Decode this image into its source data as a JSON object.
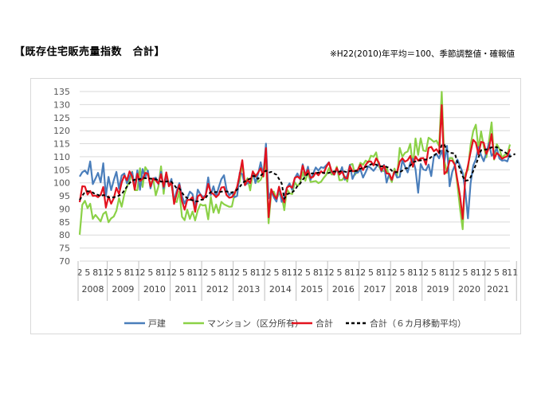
{
  "header": {
    "title": "【既存住宅販売量指数　合計】",
    "note": "※H22(2010)年平均＝100、季節調整値・確報値"
  },
  "chart_data": {
    "type": "line",
    "title": "【既存住宅販売量指数　合計】",
    "ylim": [
      70,
      135
    ],
    "yticks": [
      70,
      75,
      80,
      85,
      90,
      95,
      100,
      105,
      110,
      115,
      120,
      125,
      130,
      135
    ],
    "grid": true,
    "legend_position": "bottom",
    "start_month": "2008-02",
    "x_ticks": [
      {
        "month": "2008-02",
        "label": "2"
      },
      {
        "month": "2008-05",
        "label": "5"
      },
      {
        "month": "2008-08",
        "label": "8"
      },
      {
        "month": "2008-11",
        "label": "11"
      },
      {
        "month": "2009-02",
        "label": "2"
      },
      {
        "month": "2009-05",
        "label": "5"
      },
      {
        "month": "2009-08",
        "label": "8"
      },
      {
        "month": "2009-11",
        "label": "11"
      },
      {
        "month": "2010-02",
        "label": "2"
      },
      {
        "month": "2010-05",
        "label": "5"
      },
      {
        "month": "2010-08",
        "label": "8"
      },
      {
        "month": "2010-11",
        "label": "11"
      },
      {
        "month": "2011-02",
        "label": "2"
      },
      {
        "month": "2011-05",
        "label": "5"
      },
      {
        "month": "2011-08",
        "label": "8"
      },
      {
        "month": "2011-11",
        "label": "11"
      },
      {
        "month": "2012-02",
        "label": "2"
      },
      {
        "month": "2012-05",
        "label": "5"
      },
      {
        "month": "2012-08",
        "label": "8"
      },
      {
        "month": "2012-11",
        "label": "11"
      },
      {
        "month": "2013-02",
        "label": "2"
      },
      {
        "month": "2013-05",
        "label": "5"
      },
      {
        "month": "2013-08",
        "label": "8"
      },
      {
        "month": "2013-11",
        "label": "11"
      },
      {
        "month": "2014-02",
        "label": "2"
      },
      {
        "month": "2014-05",
        "label": "5"
      },
      {
        "month": "2014-08",
        "label": "8"
      },
      {
        "month": "2014-11",
        "label": "11"
      },
      {
        "month": "2015-02",
        "label": "2"
      },
      {
        "month": "2015-05",
        "label": "5"
      },
      {
        "month": "2015-08",
        "label": "8"
      },
      {
        "month": "2015-11",
        "label": "11"
      },
      {
        "month": "2016-02",
        "label": "2"
      },
      {
        "month": "2016-05",
        "label": "5"
      },
      {
        "month": "2016-08",
        "label": "8"
      },
      {
        "month": "2016-11",
        "label": "11"
      },
      {
        "month": "2017-02",
        "label": "2"
      },
      {
        "month": "2017-05",
        "label": "5"
      },
      {
        "month": "2017-08",
        "label": "8"
      },
      {
        "month": "2017-11",
        "label": "11"
      },
      {
        "month": "2018-02",
        "label": "2"
      },
      {
        "month": "2018-05",
        "label": "5"
      },
      {
        "month": "2018-08",
        "label": "8"
      },
      {
        "month": "2018-11",
        "label": "11"
      },
      {
        "month": "2019-02",
        "label": "2"
      },
      {
        "month": "2019-05",
        "label": "5"
      },
      {
        "month": "2019-08",
        "label": "8"
      },
      {
        "month": "2019-11",
        "label": "11"
      },
      {
        "month": "2020-02",
        "label": "2"
      },
      {
        "month": "2020-05",
        "label": "5"
      },
      {
        "month": "2020-08",
        "label": "8"
      },
      {
        "month": "2020-11",
        "label": "11"
      },
      {
        "month": "2021-02",
        "label": "2"
      },
      {
        "month": "2021-05",
        "label": "5"
      },
      {
        "month": "2021-08",
        "label": "8"
      },
      {
        "month": "2021-11",
        "label": "11"
      }
    ],
    "years": [
      "2008",
      "2009",
      "2010",
      "2011",
      "2012",
      "2013",
      "2014",
      "2015",
      "2016",
      "2017",
      "2018",
      "2019",
      "2020",
      "2021"
    ],
    "series": [
      {
        "name": "戸建",
        "color": "#4a7ebb",
        "style": "solid",
        "values": [
          102.4,
          104.1,
          104.7,
          103.4,
          108.2,
          99.5,
          101.6,
          103.8,
          100.2,
          107.5,
          94.9,
          102.3,
          97.2,
          101.0,
          104.2,
          97.7,
          102.8,
          103.6,
          99.8,
          102.3,
          104.1,
          98.4,
          104.8,
          97.3,
          105.3,
          101.9,
          104.7,
          97.9,
          101.6,
          102.0,
          99.5,
          104.2,
          97.9,
          102.2,
          99.1,
          101.5,
          92.9,
          97.0,
          99.9,
          94.9,
          92.1,
          94.2,
          96.6,
          95.7,
          90.5,
          97.4,
          95.6,
          94.6,
          95.2,
          102.1,
          95.4,
          98.7,
          94.9,
          98.3,
          101.4,
          102.9,
          97.3,
          95.2,
          96.3,
          94.5,
          95.0,
          103.9,
          103.3,
          99.1,
          99.9,
          100.2,
          104.1,
          99.9,
          103.4,
          107.9,
          102.5,
          115.0,
          94.0,
          96.8,
          94.4,
          92.8,
          98.5,
          92.7,
          95.0,
          98.1,
          99.8,
          97.3,
          101.8,
          103.6,
          101.4,
          107.1,
          102.7,
          106.2,
          101.2,
          103.6,
          105.9,
          104.7,
          106.0,
          105.7,
          106.7,
          107.9,
          104.3,
          103.1,
          105.2,
          103.1,
          106.0,
          101.2,
          102.8,
          106.9,
          101.5,
          103.8,
          103.9,
          105.2,
          102.0,
          104.1,
          106.4,
          105.6,
          104.6,
          106.0,
          107.4,
          104.3,
          106.9,
          100.1,
          103.4,
          101.1,
          104.4,
          102.0,
          102.3,
          108.7,
          106.3,
          104.0,
          107.7,
          109.2,
          105.2,
          96.2,
          107.2,
          105.1,
          104.8,
          107.0,
          102.6,
          110.1,
          111.1,
          109.4,
          112.4,
          108.0,
          114.2,
          98.7,
          104.2,
          106.7,
          108.9,
          106.5,
          103.8,
          96.9,
          86.4,
          99.8,
          106.6,
          109.0,
          113.7,
          110.6,
          108.3,
          111.5,
          115.3,
          110.4,
          111.5,
          113.2,
          109.3,
          108.5,
          108.7,
          108.2,
          111.2
        ]
      },
      {
        "name": "マンション（区分所有）",
        "color": "#8bd147",
        "style": "solid",
        "values": [
          80.1,
          91.6,
          93.1,
          90.3,
          92.0,
          86.2,
          87.7,
          86.5,
          85.2,
          88.1,
          88.9,
          84.9,
          86.4,
          87.1,
          89.3,
          94.1,
          90.8,
          95.6,
          98.6,
          100.6,
          104.3,
          97.2,
          97.2,
          105.6,
          98.4,
          106.0,
          104.4,
          99.2,
          101.6,
          95.2,
          98.6,
          106.3,
          95.8,
          104.0,
          99.1,
          99.4,
          93.0,
          92.6,
          96.6,
          87.0,
          85.7,
          89.7,
          86.2,
          89.0,
          85.6,
          89.4,
          91.8,
          91.3,
          91.5,
          86.0,
          94.6,
          88.6,
          91.7,
          88.4,
          92.7,
          91.8,
          91.3,
          90.8,
          90.9,
          95.5,
          98.5,
          100.6,
          107.5,
          99.6,
          101.8,
          97.1,
          103.8,
          103.1,
          100.3,
          101.2,
          103.6,
          107.6,
          84.5,
          96.3,
          96.6,
          93.9,
          95.8,
          95.3,
          89.5,
          97.5,
          96.0,
          95.7,
          100.2,
          98.7,
          99.9,
          104.1,
          100.8,
          103.9,
          100.3,
          100.5,
          100.7,
          99.9,
          100.4,
          101.9,
          103.1,
          105.6,
          103.2,
          103.2,
          106.2,
          101.0,
          101.1,
          102.5,
          100.5,
          106.9,
          107.2,
          103.1,
          105.0,
          107.7,
          106.9,
          108.5,
          107.8,
          110.4,
          110.0,
          111.7,
          106.3,
          104.7,
          104.5,
          105.9,
          102.5,
          100.3,
          105.5,
          102.7,
          113.4,
          110.0,
          111.5,
          112.0,
          115.0,
          106.1,
          117.0,
          110.7,
          117.1,
          112.4,
          112.1,
          117.3,
          116.6,
          115.7,
          116.2,
          114.1,
          134.9,
          108.5,
          103.8,
          109.5,
          109.5,
          107.0,
          99.2,
          90.0,
          82.2,
          103.5,
          105.0,
          114.5,
          119.8,
          122.3,
          113.1,
          119.7,
          114.0,
          109.8,
          116.1,
          123.2,
          108.9,
          114.8,
          113.0,
          109.6,
          110.7,
          110.9,
          114.7
        ]
      },
      {
        "name": "合計",
        "color": "#e3121e",
        "style": "solid",
        "values": [
          92.6,
          98.7,
          98.6,
          95.5,
          96.9,
          95.0,
          95.1,
          94.5,
          95.4,
          98.4,
          90.5,
          94.8,
          92.0,
          94.1,
          98.1,
          95.7,
          100.1,
          102.8,
          101.0,
          104.4,
          102.5,
          97.4,
          103.5,
          100.7,
          101.5,
          103.8,
          103.5,
          98.6,
          101.7,
          100.9,
          99.7,
          103.3,
          98.5,
          104.0,
          98.7,
          100.3,
          91.9,
          95.9,
          99.2,
          93.0,
          89.7,
          93.4,
          93.5,
          94.5,
          88.9,
          94.8,
          95.5,
          93.7,
          95.1,
          99.6,
          96.3,
          95.7,
          94.5,
          95.5,
          98.2,
          98.4,
          95.3,
          94.3,
          94.5,
          95.9,
          98.4,
          103.3,
          108.7,
          99.1,
          101.2,
          99.9,
          104.4,
          102.4,
          103.9,
          105.6,
          102.4,
          113.3,
          86.8,
          97.6,
          95.3,
          93.9,
          98.5,
          94.9,
          92.5,
          98.2,
          98.8,
          98.1,
          101.9,
          102.4,
          101.6,
          106.6,
          103.0,
          104.9,
          101.9,
          102.3,
          103.9,
          102.9,
          104.4,
          103.7,
          106.1,
          107.8,
          104.5,
          103.2,
          105.7,
          103.2,
          104.3,
          102.0,
          101.6,
          106.4,
          104.4,
          104.6,
          104.9,
          107.0,
          104.9,
          106.8,
          108.2,
          108.2,
          106.7,
          109.4,
          107.8,
          104.7,
          106.6,
          103.6,
          103.5,
          101.2,
          104.3,
          104.1,
          108.1,
          109.4,
          108.1,
          108.7,
          110.3,
          106.2,
          110.1,
          108.5,
          109.4,
          109.5,
          107.0,
          113.4,
          113.8,
          112.1,
          112.9,
          111.3,
          129.8,
          103.4,
          104.5,
          108.5,
          108.5,
          106.9,
          101.0,
          94.9,
          86.2,
          101.9,
          106.6,
          111.8,
          116.5,
          115.4,
          110.9,
          115.7,
          115.4,
          111.1,
          113.4,
          118.7,
          109.2,
          111.4,
          110.6,
          109.2,
          109.8,
          110.2,
          112.9
        ]
      },
      {
        "name": "合計（６カ月移動平均）",
        "color": "#000000",
        "style": "dashed",
        "values": [
          93.4,
          95.1,
          96.4,
          96.8,
          96.6,
          96.3,
          95.5,
          95.4,
          94.9,
          95.3,
          95.1,
          94.4,
          94.3,
          94.5,
          94.6,
          95.1,
          95.7,
          97.1,
          98.5,
          99.9,
          100.9,
          101.2,
          101.2,
          101.5,
          101.8,
          101.8,
          101.6,
          101.6,
          101.5,
          101.4,
          101.0,
          100.5,
          100.5,
          100.5,
          100.6,
          100.4,
          99.2,
          97.9,
          97.9,
          96.3,
          94.8,
          94.2,
          93.6,
          93.3,
          92.9,
          92.9,
          93.5,
          93.6,
          94.2,
          95.6,
          96.5,
          96.3,
          96.5,
          96.4,
          96.6,
          96.7,
          96.7,
          96.5,
          96.3,
          96.6,
          97.4,
          98.4,
          99.8,
          100.6,
          101.2,
          101.6,
          102.6,
          102.6,
          101.5,
          102.7,
          103.8,
          104.7,
          103.9,
          104.2,
          103.6,
          103.1,
          101.5,
          99.8,
          93.9,
          95.6,
          96.0,
          96.4,
          97.2,
          98.8,
          99.7,
          101.2,
          102.4,
          103.5,
          103.6,
          103.6,
          103.7,
          103.9,
          104.0,
          103.8,
          103.6,
          103.8,
          104.2,
          104.4,
          104.2,
          104.3,
          104.6,
          104.3,
          104.1,
          104.5,
          104.7,
          104.5,
          104.6,
          105.5,
          105.6,
          106.1,
          106.4,
          107.1,
          107.1,
          107.0,
          106.4,
          106.3,
          106.5,
          106.1,
          105.7,
          104.6,
          104.1,
          104.1,
          104.1,
          104.7,
          105.5,
          105.7,
          106.6,
          107.9,
          108.2,
          108.5,
          108.6,
          108.9,
          108.9,
          109.1,
          109.9,
          110.5,
          111.2,
          111.5,
          114.5,
          114.6,
          112.3,
          111.4,
          111.4,
          111.2,
          107.8,
          105.1,
          102.5,
          100.8,
          101.0,
          102.1,
          104.5,
          106.9,
          109.7,
          112.5,
          112.7,
          112.8,
          113.1,
          113.6,
          113.6,
          113.7,
          112.8,
          112.4,
          111.8,
          111.1,
          110.0,
          110.6,
          111.1
        ]
      }
    ]
  }
}
